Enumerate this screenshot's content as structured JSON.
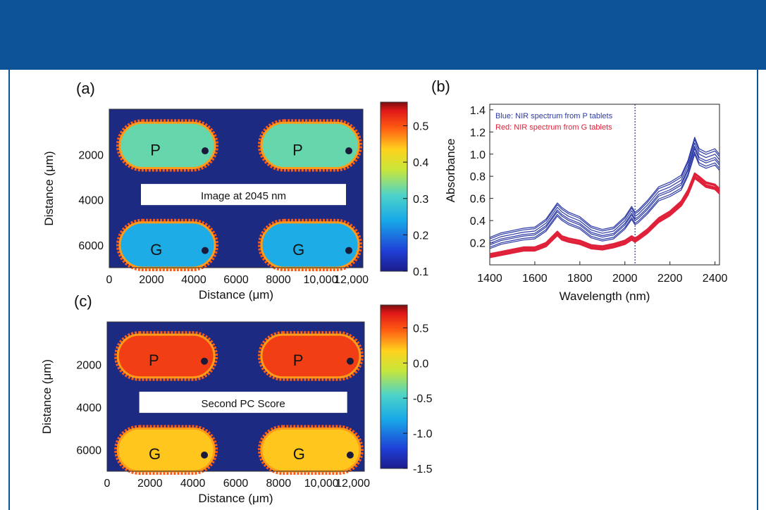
{
  "colors": {
    "header": "#0b5297",
    "map_bg": "#1c2a82",
    "blue_series": "#2d3aa6",
    "red_series": "#e0213a"
  },
  "chart_data": [
    {
      "id": "a",
      "type": "heatmap",
      "panel_label": "(a)",
      "title": "Image at 2045 nm",
      "xlabel": "Distance (μm)",
      "ylabel": "Distance (μm)",
      "xticks": [
        "0",
        "2000",
        "4000",
        "6000",
        "8000",
        "10,000",
        "12,000"
      ],
      "yticks": [
        "2000",
        "4000",
        "6000"
      ],
      "xlim": [
        0,
        12000
      ],
      "ylim": [
        0,
        7000
      ],
      "colorbar": {
        "ticks": [
          "0.5",
          "0.4",
          "0.3",
          "0.2",
          "0.1"
        ],
        "range": [
          0.1,
          0.58
        ]
      },
      "objects": [
        {
          "letter": "P",
          "x": [
            500,
            5000
          ],
          "y": [
            600,
            2600
          ],
          "value": 0.33
        },
        {
          "letter": "P",
          "x": [
            7200,
            11800
          ],
          "y": [
            600,
            2600
          ],
          "value": 0.33
        },
        {
          "letter": "G",
          "x": [
            500,
            5000
          ],
          "y": [
            5000,
            7000
          ],
          "value": 0.25
        },
        {
          "letter": "G",
          "x": [
            7200,
            11800
          ],
          "y": [
            5000,
            7000
          ],
          "value": 0.25
        }
      ]
    },
    {
      "id": "b",
      "type": "line",
      "panel_label": "(b)",
      "xlabel": "Wavelength (nm)",
      "ylabel": "Absorbance",
      "xticks": [
        "1400",
        "1600",
        "1800",
        "2000",
        "2200",
        "2400"
      ],
      "yticks": [
        "1.4",
        "1.2",
        "1.0",
        "0.8",
        "0.6",
        "0.4",
        "0.2"
      ],
      "xlim": [
        1400,
        2420
      ],
      "ylim": [
        0,
        1.45
      ],
      "marker_line_x": 2045,
      "annotations": [
        "Blue: NIR spectrum from P tablets",
        "Red: NIR spectrum from G tablets"
      ],
      "series": [
        {
          "name": "P",
          "color": "#2d3aa6",
          "x": [
            1400,
            1450,
            1500,
            1550,
            1600,
            1650,
            1700,
            1720,
            1750,
            1800,
            1850,
            1900,
            1950,
            2000,
            2030,
            2045,
            2060,
            2100,
            2150,
            2200,
            2250,
            2280,
            2310,
            2330,
            2360,
            2400,
            2420
          ],
          "y": [
            0.18,
            0.22,
            0.24,
            0.26,
            0.27,
            0.34,
            0.48,
            0.44,
            0.4,
            0.36,
            0.28,
            0.25,
            0.27,
            0.36,
            0.45,
            0.4,
            0.42,
            0.5,
            0.62,
            0.66,
            0.72,
            0.85,
            1.05,
            0.95,
            0.92,
            0.95,
            0.9
          ]
        },
        {
          "name": "G",
          "color": "#e0213a",
          "x": [
            1400,
            1450,
            1500,
            1550,
            1600,
            1650,
            1700,
            1720,
            1750,
            1800,
            1850,
            1900,
            1950,
            2000,
            2030,
            2045,
            2060,
            2100,
            2150,
            2200,
            2250,
            2280,
            2310,
            2330,
            2360,
            2400,
            2420
          ],
          "y": [
            0.08,
            0.1,
            0.12,
            0.14,
            0.14,
            0.18,
            0.28,
            0.24,
            0.22,
            0.2,
            0.16,
            0.15,
            0.17,
            0.2,
            0.24,
            0.22,
            0.24,
            0.3,
            0.4,
            0.46,
            0.55,
            0.65,
            0.8,
            0.77,
            0.72,
            0.7,
            0.66
          ]
        }
      ]
    },
    {
      "id": "c",
      "type": "heatmap",
      "panel_label": "(c)",
      "title": "Second PC Score",
      "xlabel": "Distance (μm)",
      "ylabel": "Distance (μm)",
      "xticks": [
        "0",
        "2000",
        "4000",
        "6000",
        "8000",
        "10,000",
        "12,000"
      ],
      "yticks": [
        "2000",
        "4000",
        "6000"
      ],
      "xlim": [
        0,
        12000
      ],
      "ylim": [
        0,
        7000
      ],
      "colorbar": {
        "ticks": [
          "0.5",
          "0.0",
          "-0.5",
          "-1.0",
          "-1.5"
        ],
        "range": [
          -1.8,
          1.0
        ]
      },
      "objects": [
        {
          "letter": "P",
          "x": [
            500,
            5000
          ],
          "y": [
            600,
            2600
          ],
          "value": 0.7
        },
        {
          "letter": "P",
          "x": [
            7200,
            11800
          ],
          "y": [
            600,
            2600
          ],
          "value": 0.7
        },
        {
          "letter": "G",
          "x": [
            500,
            5000
          ],
          "y": [
            5000,
            7000
          ],
          "value": 0.25
        },
        {
          "letter": "G",
          "x": [
            7200,
            11800
          ],
          "y": [
            5000,
            7000
          ],
          "value": 0.25
        }
      ]
    }
  ]
}
